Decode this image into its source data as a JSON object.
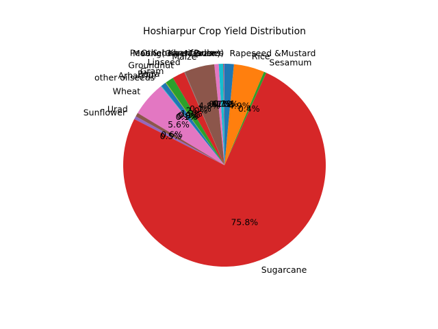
{
  "chart_data": {
    "type": "pie",
    "title": "Hoshiarpur Crop Yield Distribution",
    "start_angle_deg": 65.6,
    "direction": "counterclockwise",
    "slices": [
      {
        "label": "Sesamum",
        "value": 0.4,
        "pct_text": "0.4%",
        "color": "#2ca02c"
      },
      {
        "label": "Rice",
        "value": 4.9,
        "pct_text": "4.9%",
        "color": "#ff7f0e"
      },
      {
        "label": "Rapeseed &Mustard",
        "value": 1.5,
        "pct_text": "1.5%",
        "color": "#1f77b4"
      },
      {
        "label": "Peas & beans (Pulses)",
        "value": 0.1,
        "pct_text": "0.1%",
        "color": "#9467bd"
      },
      {
        "label": "Other Kharif pulses",
        "value": 0.1,
        "pct_text": "0.1%",
        "color": "#8c564b"
      },
      {
        "label": "Moong(Green Gram)",
        "value": 0.7,
        "pct_text": "0.7%",
        "color": "#17becf"
      },
      {
        "label": "Masoor",
        "value": 0.7,
        "pct_text": "0.7%",
        "color": "#e377c2"
      },
      {
        "label": "Maize",
        "value": 4.8,
        "pct_text": "4.8%",
        "color": "#8c564b"
      },
      {
        "label": "Linseed",
        "value": 0.1,
        "pct_text": "0.1%",
        "color": "#7f7f7f"
      },
      {
        "label": "Groundnut",
        "value": 2.0,
        "pct_text": "2.0%",
        "color": "#d62728"
      },
      {
        "label": "Gram",
        "value": 1.3,
        "pct_text": "1.3%",
        "color": "#2ca02c"
      },
      {
        "label": "Bajra",
        "value": 0.1,
        "pct_text": "0.1%",
        "color": "#bcbd22"
      },
      {
        "label": "Arhar/Tur",
        "value": 0.8,
        "pct_text": "0.8%",
        "color": "#1f77b4"
      },
      {
        "label": "other oilseeds",
        "value": 0.1,
        "pct_text": "0.1%",
        "color": "#17becf"
      },
      {
        "label": "Wheat",
        "value": 5.6,
        "pct_text": "5.6%",
        "color": "#e377c2"
      },
      {
        "label": "Urad",
        "value": 0.6,
        "pct_text": "0.6%",
        "color": "#8c564b"
      },
      {
        "label": "Sunflower",
        "value": 0.5,
        "pct_text": "0.5%",
        "color": "#9467bd"
      },
      {
        "label": "Sugarcane",
        "value": 75.8,
        "pct_text": "75.8%",
        "color": "#d62728"
      }
    ]
  }
}
